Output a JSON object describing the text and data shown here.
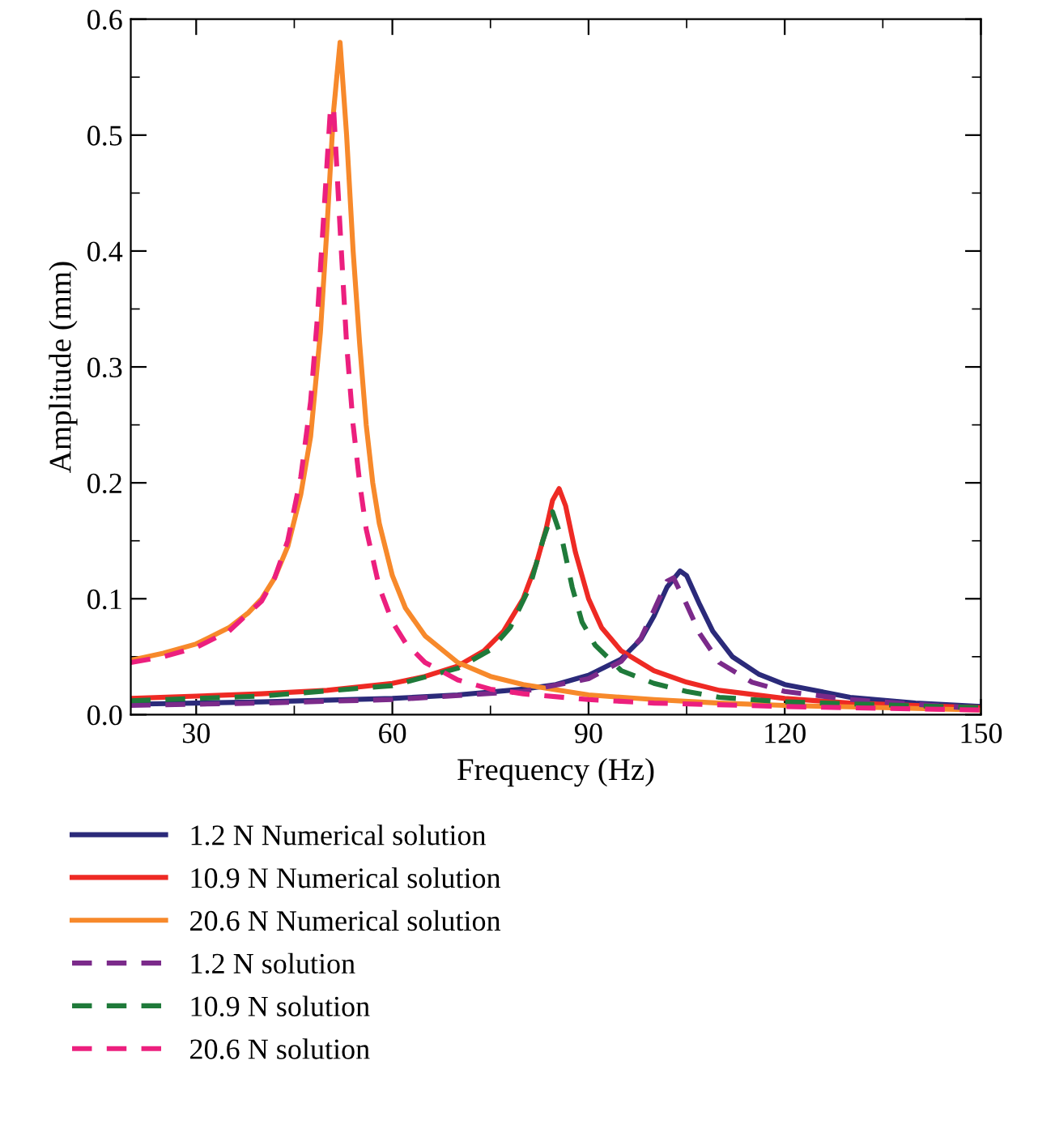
{
  "chart_data": {
    "type": "line",
    "xlabel": "Frequency (Hz)",
    "ylabel": "Amplitude (mm)",
    "xlim": [
      20,
      150
    ],
    "xticks": [
      30,
      60,
      90,
      120,
      150
    ],
    "ylim": [
      0,
      0.6
    ],
    "yticks": [
      {
        "value": 0,
        "label": "0.0"
      },
      0.1,
      0.2,
      0.3,
      0.4,
      0.5,
      0.6
    ],
    "legend": "bottom",
    "grid": false,
    "series": [
      {
        "name": "1.2 N Numerical solution",
        "color": "#2b2a7a",
        "line_style": "solid",
        "x": [
          20,
          40,
          60,
          70,
          80,
          85,
          90,
          95,
          98,
          100,
          102,
          104,
          105,
          107,
          109,
          112,
          116,
          120,
          130,
          140,
          150
        ],
        "values": [
          0.009,
          0.011,
          0.014,
          0.017,
          0.022,
          0.026,
          0.034,
          0.048,
          0.065,
          0.085,
          0.11,
          0.124,
          0.12,
          0.095,
          0.072,
          0.05,
          0.035,
          0.026,
          0.015,
          0.01,
          0.007
        ]
      },
      {
        "name": "10.9 N Numerical solution",
        "color": "#ee2a24",
        "line_style": "solid",
        "x": [
          20,
          30,
          40,
          50,
          60,
          65,
          70,
          74,
          77,
          80,
          82,
          83.5,
          84.5,
          85.5,
          86.5,
          88,
          90,
          92,
          95,
          100,
          105,
          110,
          120,
          130,
          140,
          150
        ],
        "values": [
          0.014,
          0.016,
          0.018,
          0.021,
          0.027,
          0.033,
          0.042,
          0.055,
          0.072,
          0.1,
          0.13,
          0.16,
          0.185,
          0.195,
          0.18,
          0.14,
          0.1,
          0.075,
          0.055,
          0.038,
          0.028,
          0.021,
          0.014,
          0.01,
          0.008,
          0.006
        ]
      },
      {
        "name": "20.6 N Numerical solution",
        "color": "#f7892b",
        "line_style": "solid",
        "x": [
          20,
          25,
          30,
          35,
          38,
          40,
          42,
          44,
          46,
          47.5,
          49,
          50,
          51,
          52,
          53,
          54,
          55,
          56,
          57,
          58,
          60,
          62,
          65,
          70,
          75,
          80,
          90,
          100,
          110,
          120,
          135,
          150
        ],
        "values": [
          0.047,
          0.053,
          0.061,
          0.075,
          0.088,
          0.1,
          0.118,
          0.145,
          0.19,
          0.24,
          0.33,
          0.42,
          0.52,
          0.58,
          0.5,
          0.4,
          0.32,
          0.25,
          0.2,
          0.165,
          0.12,
          0.092,
          0.068,
          0.045,
          0.033,
          0.026,
          0.017,
          0.013,
          0.01,
          0.008,
          0.006,
          0.004
        ]
      },
      {
        "name": "1.2 N solution",
        "color": "#7b2a8a",
        "line_style": "dashed",
        "x": [
          20,
          40,
          60,
          80,
          90,
          95,
          98,
          100,
          102,
          103,
          105,
          107,
          110,
          115,
          120,
          130,
          150
        ],
        "values": [
          0.008,
          0.01,
          0.013,
          0.02,
          0.031,
          0.046,
          0.066,
          0.09,
          0.115,
          0.118,
          0.095,
          0.07,
          0.045,
          0.028,
          0.02,
          0.013,
          0.005
        ]
      },
      {
        "name": "10.9 N solution",
        "color": "#1f7a3a",
        "line_style": "dashed",
        "x": [
          20,
          40,
          60,
          70,
          75,
          78,
          81,
          83,
          84.5,
          86,
          87.5,
          89,
          91,
          95,
          100,
          105,
          110,
          120,
          150
        ],
        "values": [
          0.012,
          0.016,
          0.025,
          0.04,
          0.056,
          0.075,
          0.11,
          0.15,
          0.175,
          0.15,
          0.11,
          0.08,
          0.06,
          0.038,
          0.027,
          0.02,
          0.015,
          0.011,
          0.006
        ]
      },
      {
        "name": "20.6 N solution",
        "color": "#ec1f7e",
        "line_style": "dashed",
        "x": [
          20,
          25,
          30,
          35,
          40,
          42,
          44,
          46,
          47.5,
          48.5,
          49.5,
          50.5,
          51,
          52,
          53,
          54,
          55,
          56,
          58,
          60,
          62,
          65,
          70,
          75,
          80,
          90,
          100,
          120,
          150
        ],
        "values": [
          0.045,
          0.05,
          0.058,
          0.072,
          0.098,
          0.118,
          0.15,
          0.205,
          0.27,
          0.34,
          0.43,
          0.52,
          0.525,
          0.42,
          0.32,
          0.25,
          0.2,
          0.16,
          0.11,
          0.08,
          0.062,
          0.045,
          0.03,
          0.022,
          0.018,
          0.013,
          0.01,
          0.007,
          0.004
        ]
      }
    ]
  }
}
